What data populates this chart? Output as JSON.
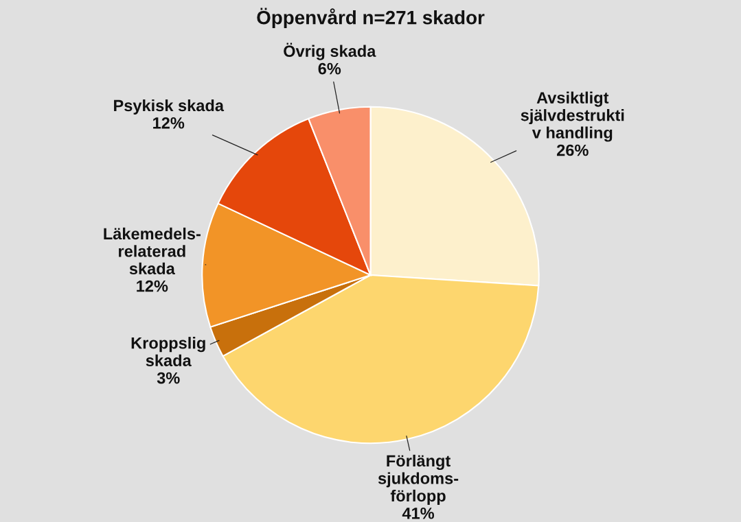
{
  "chart_data": {
    "type": "pie",
    "title": "Öppenvård n=271 skador",
    "categories": [
      "Avsiktligt\nsjälvdestrukti\nv handling",
      "Förlängt\nsjukdoms-\nförlopp",
      "Kroppslig\nskada",
      "Läkemedels-\nrelaterad\nskada",
      "Psykisk skada",
      "Övrig skada"
    ],
    "values": [
      26,
      41,
      3,
      12,
      12,
      6
    ],
    "value_labels": [
      "26%",
      "41%",
      "3%",
      "12%",
      "12%",
      "6%"
    ],
    "colors": [
      "#fdf0cc",
      "#fdd66e",
      "#c8700c",
      "#f29427",
      "#e5470b",
      "#f98f6a"
    ],
    "legend": false
  }
}
